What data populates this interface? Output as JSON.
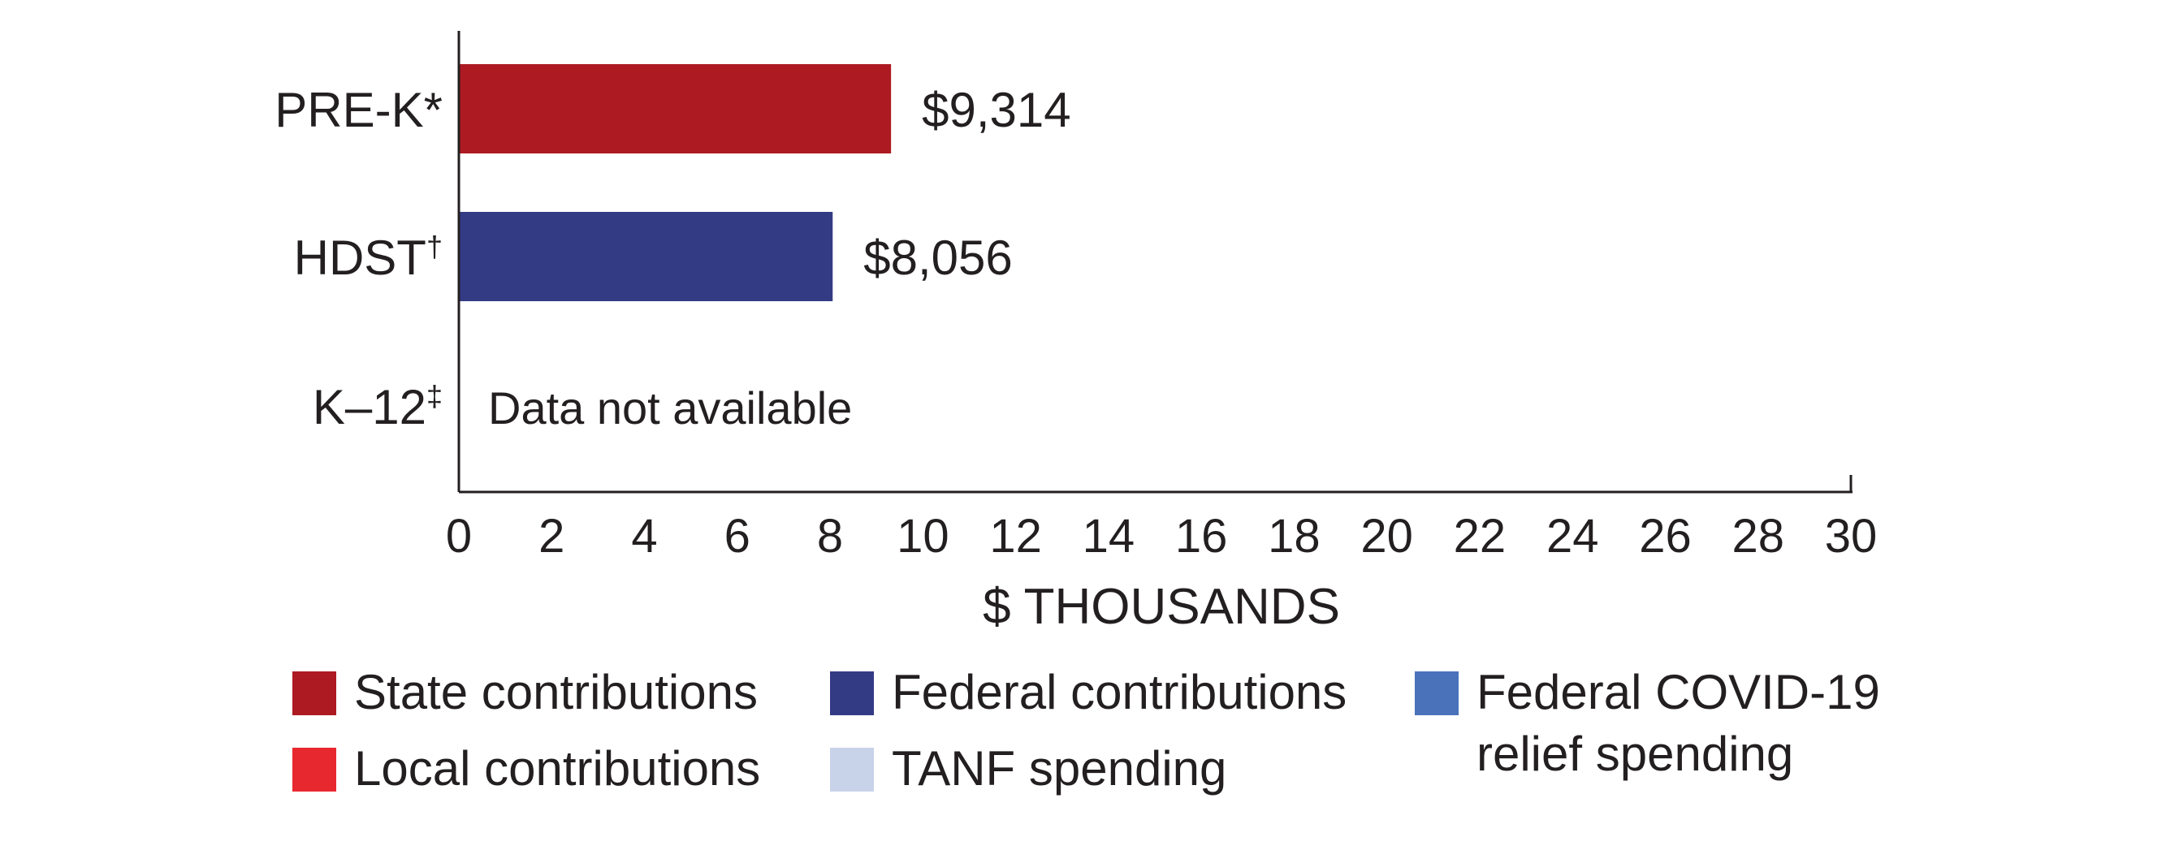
{
  "chart_data": {
    "type": "bar",
    "orientation": "horizontal",
    "categories": [
      "PRE-K",
      "HDST",
      "K–12"
    ],
    "category_marks": [
      "*",
      "†",
      "‡"
    ],
    "values": [
      9.314,
      8.056,
      null
    ],
    "value_labels": [
      "$9,314",
      "$8,056",
      "Data not available"
    ],
    "bar_colors": [
      "#ad1a22",
      "#343b85",
      null
    ],
    "xlabel": "$ THOUSANDS",
    "xlim": [
      0,
      30
    ],
    "xticks": [
      "0",
      "2",
      "4",
      "6",
      "8",
      "10",
      "12",
      "14",
      "16",
      "18",
      "20",
      "22",
      "24",
      "26",
      "28",
      "30"
    ],
    "grid": false,
    "legend": {
      "placement": "bottom",
      "items": [
        {
          "label": "State contributions",
          "color": "#ad1a22"
        },
        {
          "label": "Federal contributions",
          "color": "#343b85"
        },
        {
          "label": "Federal COVID-19 relief spending",
          "color": "#4a72bb"
        },
        {
          "label": "Local contributions",
          "color": "#e8282f"
        },
        {
          "label": "TANF spending",
          "color": "#c8d3ea"
        }
      ]
    }
  }
}
